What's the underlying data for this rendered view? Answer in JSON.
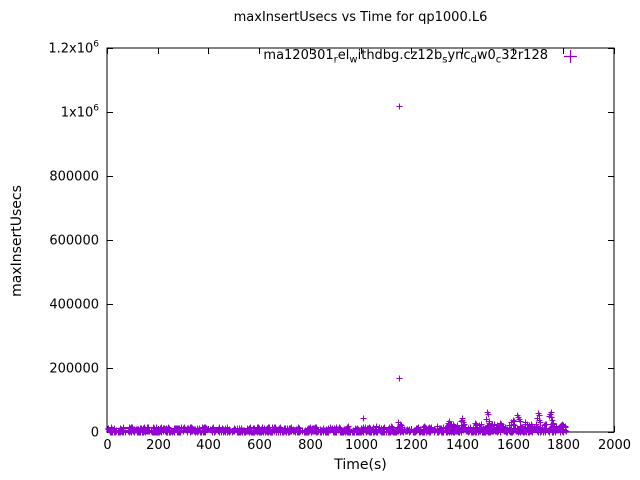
{
  "chart_data": {
    "type": "scatter",
    "title": "maxInsertUsecs vs Time for qp1000.L6",
    "xlabel": "Time(s)",
    "ylabel": "maxInsertUsecs",
    "xlim": [
      0,
      2000
    ],
    "ylim": [
      0,
      1200000
    ],
    "x_ticks": [
      0,
      200,
      400,
      600,
      800,
      1000,
      1200,
      1400,
      1600,
      1800,
      2000
    ],
    "y_ticks": [
      {
        "value": 0,
        "label": "0"
      },
      {
        "value": 200000,
        "label": "200000"
      },
      {
        "value": 400000,
        "label": "400000"
      },
      {
        "value": 600000,
        "label": "600000"
      },
      {
        "value": 800000,
        "label": "800000"
      },
      {
        "value": 1000000,
        "label": "1x10",
        "sup": "6"
      },
      {
        "value": 1200000,
        "label": "1.2x10",
        "sup": "6"
      }
    ],
    "grid": false,
    "legend_position": "top-right-inside",
    "marker": "plus",
    "color": "#9400D3",
    "axis_color": "#000000",
    "series": [
      {
        "name": "ma120301_rel_withdbg.cz12b_sync_dw0_c32r128",
        "display_parts": [
          {
            "text": "ma120301",
            "subscript": false
          },
          {
            "text": "r",
            "subscript": true
          },
          {
            "text": "el",
            "subscript": false
          },
          {
            "text": "w",
            "subscript": true
          },
          {
            "text": "ithdbg.cz12b",
            "subscript": false
          },
          {
            "text": "s",
            "subscript": true
          },
          {
            "text": "ync",
            "subscript": false
          },
          {
            "text": "d",
            "subscript": true
          },
          {
            "text": "w0",
            "subscript": false
          },
          {
            "text": "c",
            "subscript": true
          },
          {
            "text": "32r128",
            "subscript": false
          }
        ],
        "baseline_band": {
          "x_min": 2,
          "x_max": 1812,
          "y_min": 300,
          "y_max": 16000,
          "count": 1200
        },
        "elevated_band": {
          "x_min": 1340,
          "x_max": 1805,
          "y_min": 12000,
          "y_max": 26000,
          "count": 80
        },
        "spike_points": [
          [
            180,
            17000
          ],
          [
            240,
            15000
          ],
          [
            420,
            16000
          ],
          [
            560,
            14000
          ],
          [
            640,
            17000
          ],
          [
            820,
            15000
          ],
          [
            950,
            19000
          ],
          [
            1010,
            45000
          ],
          [
            1060,
            20000
          ],
          [
            1120,
            18000
          ],
          [
            1148,
            30000
          ],
          [
            1150,
            1020000
          ],
          [
            1152,
            170000
          ],
          [
            1155,
            25000
          ],
          [
            1160,
            22000
          ],
          [
            1250,
            18000
          ],
          [
            1300,
            20000
          ],
          [
            1345,
            28000
          ],
          [
            1350,
            33000
          ],
          [
            1355,
            26000
          ],
          [
            1395,
            34000
          ],
          [
            1400,
            43000
          ],
          [
            1402,
            39000
          ],
          [
            1405,
            30000
          ],
          [
            1408,
            25000
          ],
          [
            1450,
            27000
          ],
          [
            1455,
            22000
          ],
          [
            1495,
            40000
          ],
          [
            1500,
            63000
          ],
          [
            1502,
            55000
          ],
          [
            1505,
            35000
          ],
          [
            1508,
            28000
          ],
          [
            1550,
            28000
          ],
          [
            1555,
            24000
          ],
          [
            1595,
            31000
          ],
          [
            1600,
            38000
          ],
          [
            1605,
            33000
          ],
          [
            1618,
            52000
          ],
          [
            1622,
            47000
          ],
          [
            1625,
            40000
          ],
          [
            1628,
            33000
          ],
          [
            1650,
            30000
          ],
          [
            1655,
            26000
          ],
          [
            1695,
            45000
          ],
          [
            1700,
            60000
          ],
          [
            1703,
            52000
          ],
          [
            1705,
            38000
          ],
          [
            1708,
            31000
          ],
          [
            1745,
            50000
          ],
          [
            1748,
            57000
          ],
          [
            1750,
            63000
          ],
          [
            1752,
            48000
          ],
          [
            1755,
            36000
          ],
          [
            1758,
            29000
          ],
          [
            1790,
            22000
          ],
          [
            1800,
            18000
          ]
        ]
      }
    ]
  }
}
